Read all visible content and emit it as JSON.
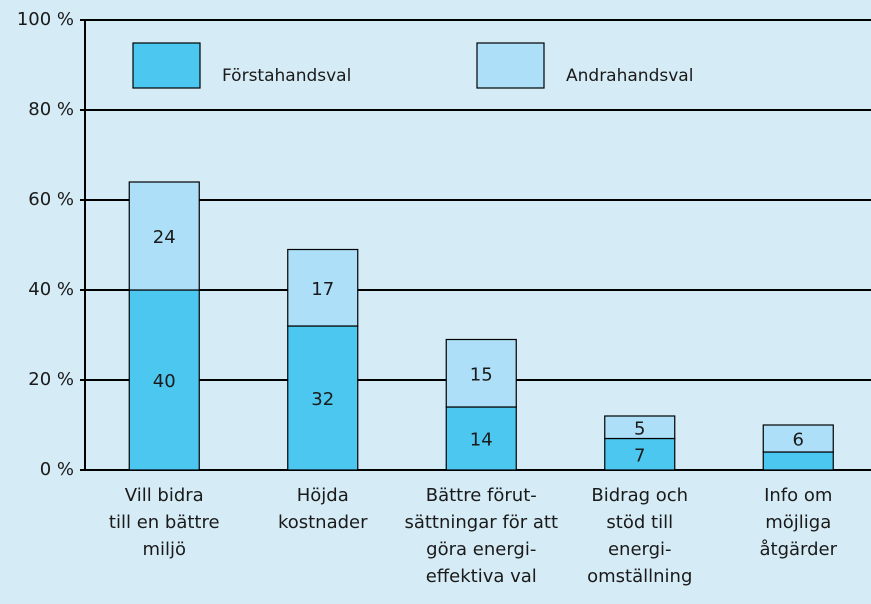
{
  "chart_data": {
    "type": "stacked_bar",
    "categories": [
      [
        "Vill bidra",
        "till en bättre",
        "miljö"
      ],
      [
        "Höjda",
        "kostnader"
      ],
      [
        "Bättre förut-",
        "sättningar för att",
        "göra energi-",
        "effektiva val"
      ],
      [
        "Bidrag och",
        "stöd till",
        "energi-",
        "omställning"
      ],
      [
        "Info om",
        "möjliga",
        "åtgärder"
      ]
    ],
    "series": [
      {
        "name": "Förstahandsval",
        "color": "#4cc8f0",
        "values": [
          40,
          32,
          14,
          7,
          4
        ],
        "value_labels": [
          "40",
          "32",
          "14",
          "7",
          null
        ]
      },
      {
        "name": "Andrahandsval",
        "color": "#aedff8",
        "values": [
          24,
          17,
          15,
          5,
          6
        ],
        "value_labels": [
          "24",
          "17",
          "15",
          "5",
          "6"
        ]
      }
    ],
    "ylim": [
      0,
      100
    ],
    "yticks": [
      {
        "value": 0,
        "label": "0 %"
      },
      {
        "value": 20,
        "label": "20 %"
      },
      {
        "value": 40,
        "label": "40 %"
      },
      {
        "value": 60,
        "label": "60 %"
      },
      {
        "value": 80,
        "label": "80 %"
      },
      {
        "value": 100,
        "label": "100 %"
      }
    ],
    "grid": true,
    "legend": "top"
  }
}
